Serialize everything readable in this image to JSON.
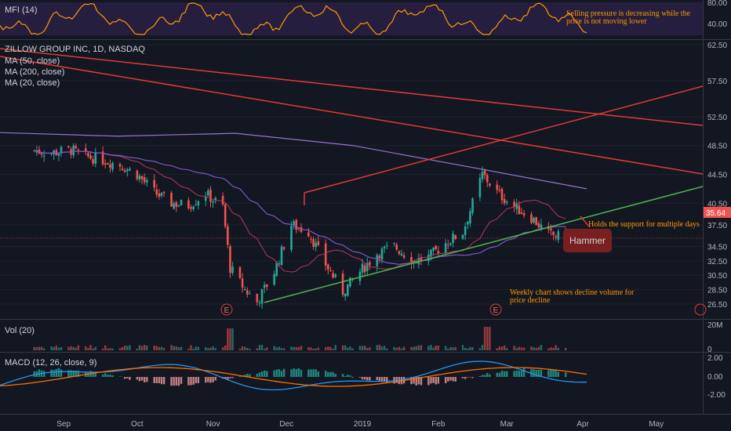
{
  "chart_data": {
    "type": "candlestick",
    "title": "ZILLOW GROUP INC, 1D, NASDAQ",
    "last_price": "35.64",
    "indicators": {
      "mfi": "MFI (14)",
      "ma50": "MA (50, close)",
      "ma200": "MA (200, close)",
      "ma20": "MA (20, close)",
      "vol": "Vol (20)",
      "macd": "MACD (12, 26, close, 9)"
    },
    "x_ticks": [
      "Sep",
      "Oct",
      "Nov",
      "Dec",
      "2019",
      "Feb",
      "Mar",
      "Apr",
      "May"
    ],
    "price_ticks": [
      "62.50",
      "57.50",
      "52.50",
      "48.50",
      "44.50",
      "40.50",
      "37.50",
      "34.50",
      "32.50",
      "30.50",
      "28.50",
      "26.50"
    ],
    "mfi_ticks": [
      "80.00",
      "40.00"
    ],
    "vol_ticks": [
      "20M",
      "0"
    ],
    "macd_ticks": [
      "2.00",
      "0.00",
      "-2.00"
    ],
    "earnings_marker": "E",
    "annotations": {
      "mfi_note_1": "Selling pressure is decreasing while the",
      "mfi_note_2": "price is not moving lower",
      "support_note": "Holds the support for multiple days",
      "hammer": "Hammer",
      "volume_note_1": "Weekly chart shows decline volume for",
      "volume_note_2": "price decline"
    },
    "price_path": [
      [
        "2018-08-20",
        47.8
      ],
      [
        "2018-08-27",
        47.5
      ],
      [
        "2018-09-04",
        47.9
      ],
      [
        "2018-09-10",
        47.0
      ],
      [
        "2018-09-17",
        46.5
      ],
      [
        "2018-09-24",
        45.8
      ],
      [
        "2018-10-01",
        44.5
      ],
      [
        "2018-10-08",
        42.0
      ],
      [
        "2018-10-15",
        40.5
      ],
      [
        "2018-10-22",
        40.2
      ],
      [
        "2018-10-29",
        41.8
      ],
      [
        "2018-11-05",
        40.0
      ],
      [
        "2018-11-08",
        31.5
      ],
      [
        "2018-11-14",
        28.5
      ],
      [
        "2018-11-19",
        26.8
      ],
      [
        "2018-11-26",
        31.0
      ],
      [
        "2018-12-03",
        37.5
      ],
      [
        "2018-12-10",
        36.5
      ],
      [
        "2018-12-17",
        32.0
      ],
      [
        "2018-12-24",
        28.2
      ],
      [
        "2018-12-31",
        31.0
      ],
      [
        "2019-01-07",
        33.5
      ],
      [
        "2019-01-14",
        34.5
      ],
      [
        "2019-01-22",
        32.5
      ],
      [
        "2019-01-28",
        33.0
      ],
      [
        "2019-02-04",
        35.0
      ],
      [
        "2019-02-11",
        36.5
      ],
      [
        "2019-02-19",
        44.5
      ],
      [
        "2019-02-25",
        42.0
      ],
      [
        "2019-03-04",
        40.0
      ],
      [
        "2019-03-11",
        38.5
      ],
      [
        "2019-03-18",
        36.2
      ],
      [
        "2019-03-25",
        35.6
      ]
    ]
  }
}
